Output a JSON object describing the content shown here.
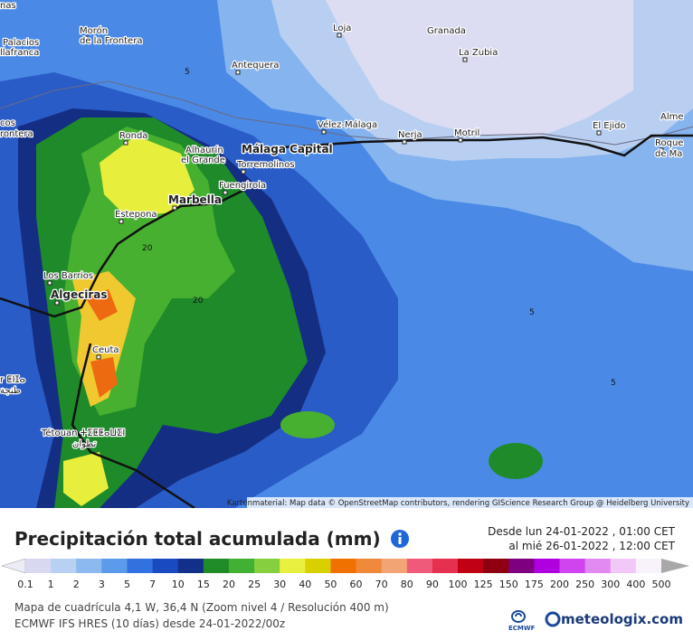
{
  "map": {
    "places": [
      "nas",
      "Morón",
      "de la Frontera",
      "Palacios",
      "llafranca",
      "Loja",
      "Granada",
      "La Zubia",
      "Antequera",
      "cos",
      "rontera",
      "Vélez-Málaga",
      "Nerja",
      "Motril",
      "El Ejido",
      "Alme",
      "Roque",
      "de Ma",
      "Ronda",
      "Alhaurín",
      "el Grande",
      "Málaga Capital",
      "Torremolinos",
      "Fuengirola",
      "Marbella",
      "Estepona",
      "Los Barrios",
      "Algeciras",
      "Ceuta",
      "r ⵟⵏⵊⴰ",
      "طنجة",
      "Tétouan ⵜⵉⵟⵟⴰⵡⵉⵏ",
      "تطوان"
    ],
    "contour_labels": [
      "5",
      "5",
      "5",
      "20",
      "20"
    ],
    "attribution": "Kartenmaterial: Map data © OpenStreetMap contributors, rendering GIScience Research Group @ Heidelberg University"
  },
  "header": {
    "title": "Precipitación total acumulada (mm)",
    "from": "Desde lun 24-01-2022 , 01:00 CET",
    "to": "al mié 26-01-2022 , 12:00 CET"
  },
  "legend": {
    "labels": [
      "0.1",
      "1",
      "2",
      "3",
      "5",
      "7",
      "10",
      "15",
      "20",
      "25",
      "30",
      "40",
      "50",
      "60",
      "70",
      "80",
      "90",
      "100",
      "125",
      "150",
      "175",
      "200",
      "250",
      "300",
      "400",
      "500"
    ]
  },
  "footer": {
    "grid": "Mapa de cuadrícula 4,1 W, 36,4 N (Zoom nivel 4 / Resolución 400 m)",
    "model": "ECMWF IFS HRES (10 días) desde 24-01-2022/00z",
    "ecmwf": "ECMWF",
    "brand": "meteologix.com"
  }
}
